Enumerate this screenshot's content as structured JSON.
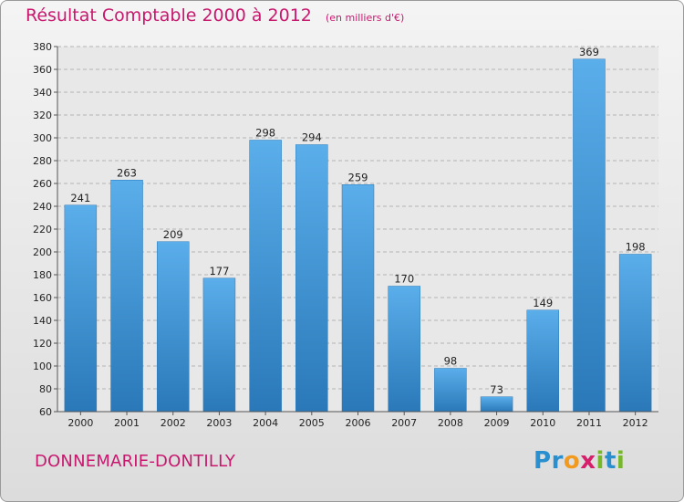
{
  "chart_data": {
    "type": "bar",
    "title": "Résultat Comptable 2000 à 2012",
    "subtitle": "(en milliers d'€)",
    "categories": [
      "2000",
      "2001",
      "2002",
      "2003",
      "2004",
      "2005",
      "2006",
      "2007",
      "2008",
      "2009",
      "2010",
      "2011",
      "2012"
    ],
    "values": [
      241,
      263,
      209,
      177,
      298,
      294,
      259,
      170,
      98,
      73,
      149,
      369,
      198
    ],
    "ylim": [
      60,
      380
    ],
    "yticks": [
      60,
      80,
      100,
      120,
      140,
      160,
      180,
      200,
      220,
      240,
      260,
      280,
      300,
      320,
      340,
      360,
      380
    ],
    "grid": "horizontal-dashed",
    "xlabel": "",
    "ylabel": "",
    "bar_color": "#3a93d6"
  },
  "footer": {
    "commune": "DONNEMARIE-DONTILLY",
    "logo_letters": [
      {
        "ch": "P",
        "color": "#2a8fcf"
      },
      {
        "ch": "r",
        "color": "#2a8fcf"
      },
      {
        "ch": "o",
        "color": "#f29a1d"
      },
      {
        "ch": "x",
        "color": "#d81f6c"
      },
      {
        "ch": "i",
        "color": "#76b82a"
      },
      {
        "ch": "t",
        "color": "#2a8fcf"
      },
      {
        "ch": "i",
        "color": "#76b82a"
      }
    ]
  }
}
